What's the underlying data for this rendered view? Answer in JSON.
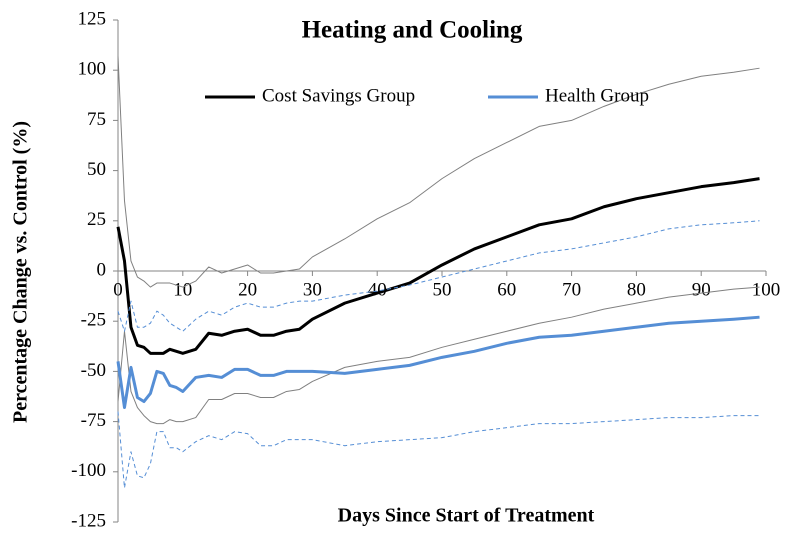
{
  "chart_data": {
    "type": "line",
    "title": "Heating and Cooling",
    "x_label": "Days Since Start of Treatment",
    "y_label": "Percentage Change vs. Control (%)",
    "x": [
      0,
      1,
      2,
      3,
      4,
      5,
      6,
      7,
      8,
      9,
      10,
      12,
      14,
      16,
      18,
      20,
      22,
      24,
      26,
      28,
      30,
      35,
      40,
      45,
      50,
      55,
      60,
      65,
      70,
      75,
      80,
      85,
      90,
      95,
      99
    ],
    "series": [
      {
        "name": "Cost Savings Group",
        "color": "#000000",
        "width": 3,
        "values": [
          22,
          5,
          -28,
          -37,
          -38,
          -41,
          -41,
          -41,
          -39,
          -40,
          -41,
          -39,
          -31,
          -32,
          -30,
          -29,
          -32,
          -32,
          -30,
          -29,
          -24,
          -16,
          -11,
          -6,
          3,
          11,
          17,
          23,
          26,
          32,
          36,
          39,
          42,
          44,
          46
        ]
      },
      {
        "color": "#808080",
        "width": 1,
        "values": [
          107,
          35,
          5,
          -3,
          -5,
          -8,
          -6,
          -6,
          -6,
          -7,
          -8,
          -5,
          2,
          -1,
          1,
          3,
          -1,
          -1,
          0,
          1,
          7,
          16,
          26,
          34,
          46,
          56,
          64,
          72,
          75,
          82,
          88,
          93,
          97,
          99,
          101
        ]
      },
      {
        "color": "#808080",
        "width": 1,
        "values": [
          -65,
          -30,
          -60,
          -68,
          -72,
          -75,
          -76,
          -76,
          -74,
          -75,
          -75,
          -73,
          -64,
          -64,
          -61,
          -61,
          -63,
          -63,
          -60,
          -59,
          -55,
          -48,
          -45,
          -43,
          -38,
          -34,
          -30,
          -26,
          -23,
          -19,
          -16,
          -13,
          -11,
          -9,
          -8
        ]
      },
      {
        "name": "Health Group",
        "color": "#558ed5",
        "width": 3,
        "values": [
          -45,
          -68,
          -48,
          -63,
          -65,
          -61,
          -50,
          -51,
          -57,
          -58,
          -60,
          -53,
          -52,
          -53,
          -49,
          -49,
          -52,
          -52,
          -50,
          -50,
          -50,
          -51,
          -49,
          -47,
          -43,
          -40,
          -36,
          -33,
          -32,
          -30,
          -28,
          -26,
          -25,
          -24,
          -23
        ]
      },
      {
        "color": "#558ed5",
        "width": 1,
        "dashed": true,
        "values": [
          -20,
          -30,
          -15,
          -28,
          -28,
          -26,
          -20,
          -22,
          -26,
          -28,
          -30,
          -24,
          -20,
          -22,
          -18,
          -16,
          -18,
          -18,
          -16,
          -15,
          -15,
          -12,
          -10,
          -7,
          -3,
          1,
          5,
          9,
          11,
          14,
          17,
          21,
          23,
          24,
          25
        ]
      },
      {
        "color": "#558ed5",
        "width": 1,
        "dashed": true,
        "values": [
          -70,
          -108,
          -90,
          -102,
          -103,
          -96,
          -80,
          -80,
          -88,
          -88,
          -90,
          -85,
          -82,
          -84,
          -80,
          -81,
          -87,
          -87,
          -84,
          -84,
          -84,
          -87,
          -85,
          -84,
          -83,
          -80,
          -78,
          -76,
          -76,
          -75,
          -74,
          -73,
          -73,
          -72,
          -72
        ]
      }
    ],
    "xlim": [
      0,
      100
    ],
    "xticks": [
      0,
      10,
      20,
      30,
      40,
      50,
      60,
      70,
      80,
      90,
      100
    ],
    "ylim": [
      -125,
      125
    ],
    "yticks": [
      -125,
      -100,
      -75,
      -50,
      -25,
      0,
      25,
      50,
      75,
      100,
      125
    ],
    "legend": "top"
  }
}
